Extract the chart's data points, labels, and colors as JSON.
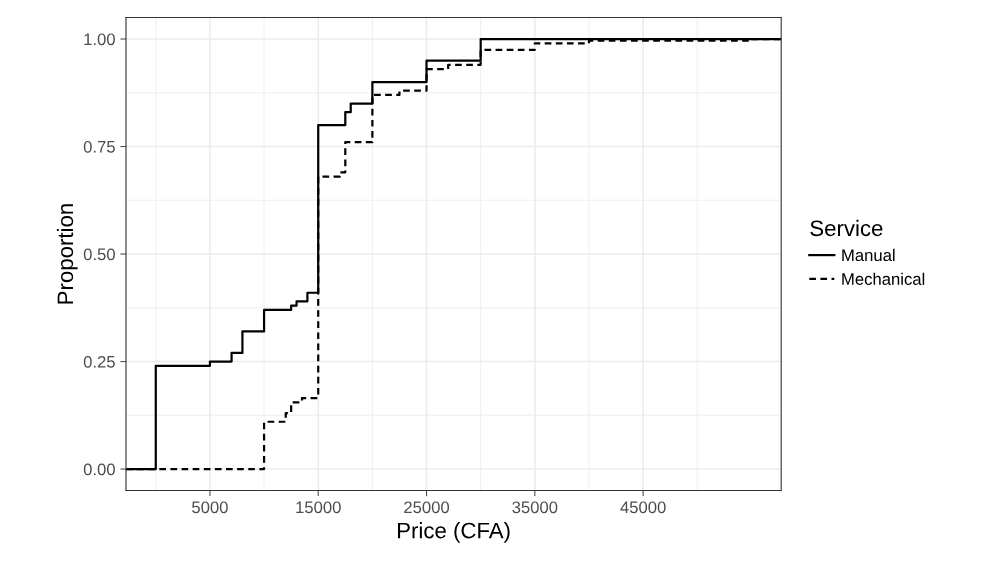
{
  "chart_data": {
    "type": "step",
    "xlabel": "Price (CFA)",
    "ylabel": "Proportion",
    "legend_title": "Service",
    "legend": "right",
    "grid": true,
    "marker": "none",
    "xlim": [
      -2750,
      57750
    ],
    "xticks": [
      5000,
      15000,
      25000,
      35000,
      45000
    ],
    "ylim": [
      -0.05,
      1.05
    ],
    "yticks": [
      {
        "value": 0,
        "label": "0.00"
      },
      {
        "value": 0.25,
        "label": "0.25"
      },
      {
        "value": 0.5,
        "label": "0.50"
      },
      {
        "value": 0.75,
        "label": "0.75"
      },
      {
        "value": 1,
        "label": "1.00"
      }
    ],
    "series": [
      {
        "name": "Manual",
        "color": "#000000",
        "line_style": "solid",
        "x": [
          -2750,
          0,
          5000,
          7000,
          8000,
          10000,
          12500,
          13000,
          14000,
          15000,
          17500,
          18000,
          20000,
          25000,
          30000,
          57750
        ],
        "values": [
          0,
          0.24,
          0.25,
          0.27,
          0.32,
          0.37,
          0.38,
          0.39,
          0.41,
          0.8,
          0.83,
          0.85,
          0.9,
          0.95,
          1.0,
          1.0
        ]
      },
      {
        "name": "Mechanical",
        "color": "#000000",
        "line_style": "dashed",
        "x": [
          -2750,
          10000,
          12000,
          12500,
          13500,
          15000,
          17000,
          17500,
          20000,
          22500,
          25000,
          27000,
          30000,
          35000,
          40000,
          55000,
          57750
        ],
        "values": [
          0,
          0.11,
          0.13,
          0.155,
          0.165,
          0.68,
          0.69,
          0.76,
          0.87,
          0.88,
          0.93,
          0.94,
          0.975,
          0.99,
          0.996,
          1.0,
          1.0
        ]
      }
    ]
  }
}
